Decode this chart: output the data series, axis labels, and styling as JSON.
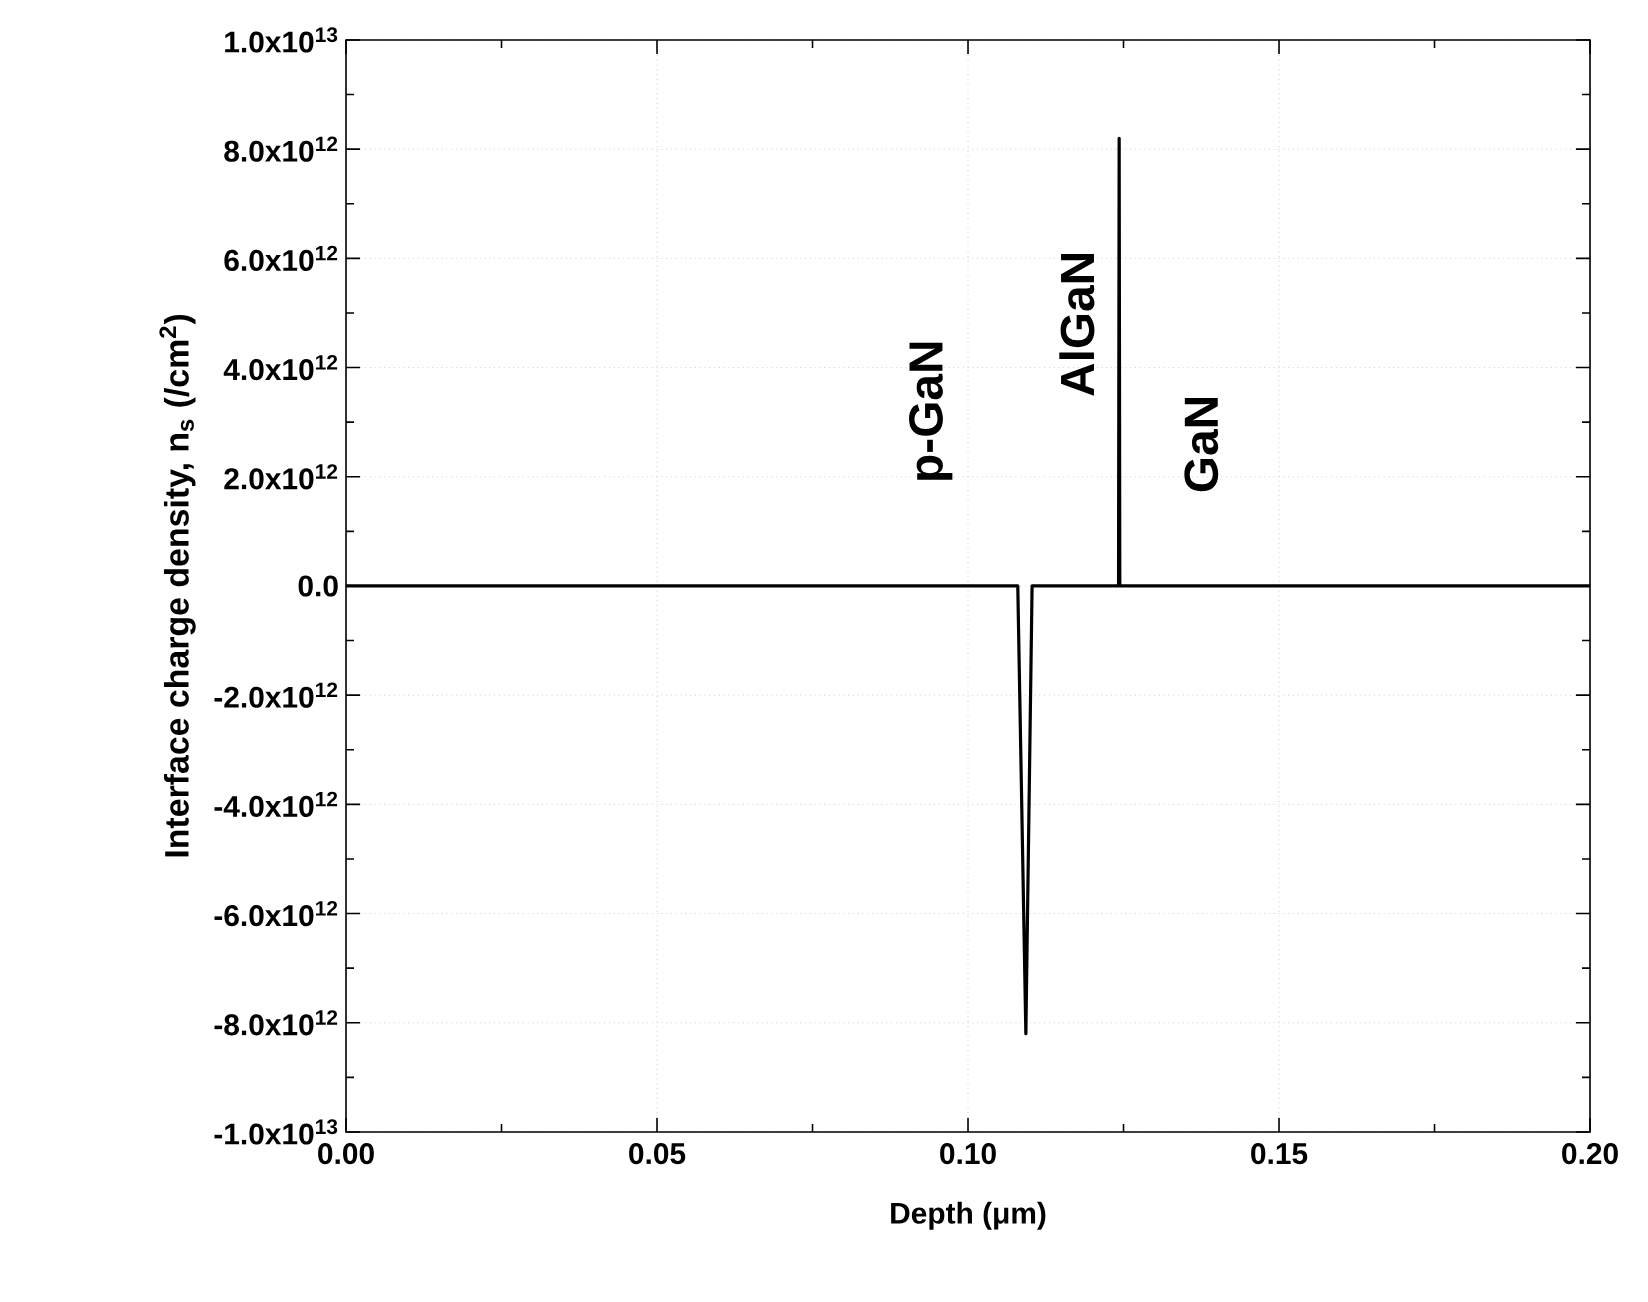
{
  "chart_data": {
    "type": "line",
    "xlabel": "Depth (μm)",
    "ylabel": "Interface charge density, n$_{s}$ (/cm$^{2}$)",
    "x": [
      0,
      0.108,
      0.1093,
      0.1103,
      0.1242,
      0.1243,
      0.1244,
      0.2
    ],
    "series": [
      {
        "color": "#000000",
        "values": [
          0,
          0,
          -8200000000000.0,
          0,
          0,
          8200000000000.0,
          0,
          0
        ]
      }
    ],
    "xlim": [
      0,
      0.2
    ],
    "ylim": [
      -10000000000000.0,
      10000000000000.0
    ],
    "xticks": [
      {
        "value": 0,
        "label": "0.00"
      },
      {
        "value": 0.05,
        "label": "0.05"
      },
      {
        "value": 0.1,
        "label": "0.10"
      },
      {
        "value": 0.15,
        "label": "0.15"
      },
      {
        "value": 0.2,
        "label": "0.20"
      }
    ],
    "yticks": [
      {
        "value": -10000000000000.0,
        "label": "-1.0x10$^{13}$"
      },
      {
        "value": -8000000000000.0,
        "label": "-8.0x10$^{12}$"
      },
      {
        "value": -6000000000000.0,
        "label": "-6.0x10$^{12}$"
      },
      {
        "value": -4000000000000.0,
        "label": "-4.0x10$^{12}$"
      },
      {
        "value": -2000000000000.0,
        "label": "-2.0x10$^{12}$"
      },
      {
        "value": 0,
        "label": "0.0"
      },
      {
        "value": 2000000000000.0,
        "label": "2.0x10$^{12}$"
      },
      {
        "value": 4000000000000.0,
        "label": "4.0x10$^{12}$"
      },
      {
        "value": 6000000000000.0,
        "label": "6.0x10$^{12}$"
      },
      {
        "value": 8000000000000.0,
        "label": "8.0x10$^{12}$"
      },
      {
        "value": 10000000000000.0,
        "label": "1.0x10$^{13}$"
      }
    ],
    "grid": true,
    "marker": "none",
    "line_style": "solid",
    "annotations": [
      "p-GaN",
      "AlGaN",
      "GaN"
    ]
  }
}
